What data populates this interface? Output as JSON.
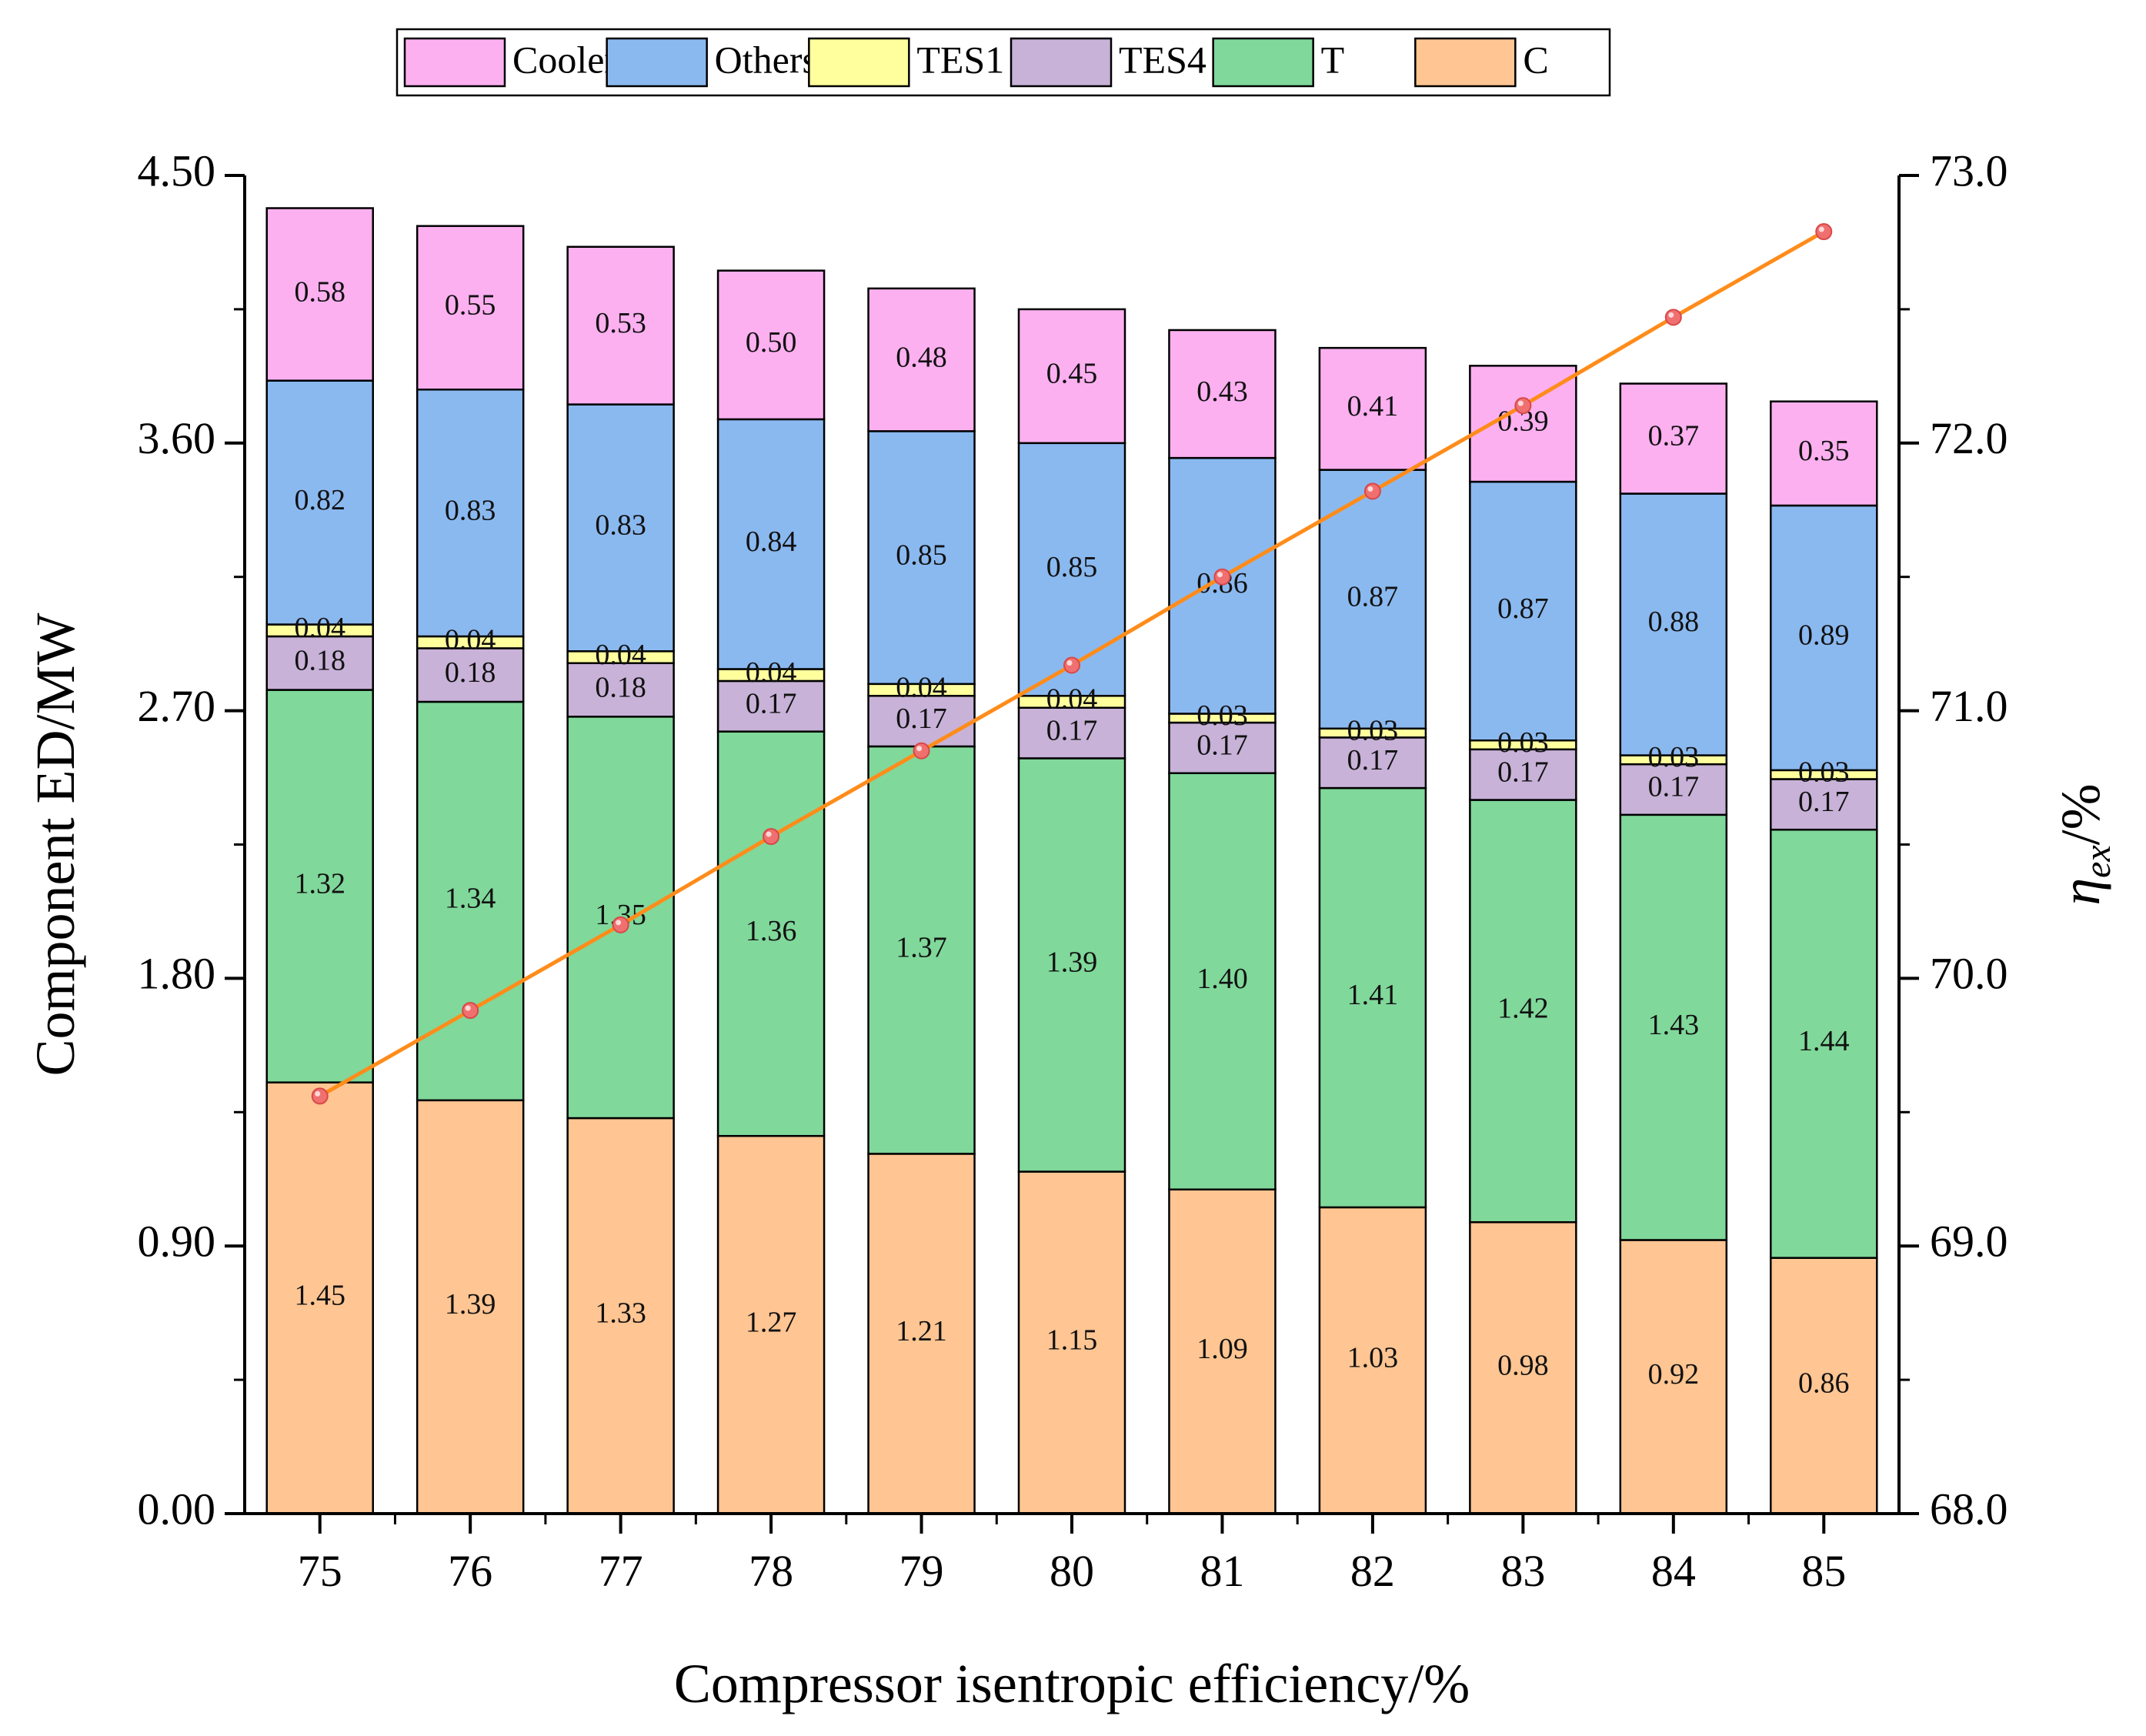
{
  "chart_data": {
    "type": "bar",
    "stacked": true,
    "xlabel": "Compressor isentropic efficiency/%",
    "ylabel": "Component ED/MW",
    "y2label": {
      "main": "η",
      "subscript": "ex",
      "suffix": "/%"
    },
    "categories": [
      "75",
      "76",
      "77",
      "78",
      "79",
      "80",
      "81",
      "82",
      "83",
      "84",
      "85"
    ],
    "ylim": [
      0,
      4.5
    ],
    "yticks": [
      "0.00",
      "0.90",
      "1.80",
      "2.70",
      "3.60",
      "4.50"
    ],
    "y2lim": [
      68.0,
      73.0
    ],
    "y2ticks": [
      "68.0",
      "69.0",
      "70.0",
      "71.0",
      "72.0",
      "73.0"
    ],
    "legend_position": "top-center",
    "series": [
      {
        "name": "C",
        "legend_label": "C",
        "color": "#FFC592",
        "values": [
          1.45,
          1.39,
          1.33,
          1.27,
          1.21,
          1.15,
          1.09,
          1.03,
          0.98,
          0.92,
          0.86
        ],
        "labels": [
          "1.45",
          "1.39",
          "1.33",
          "1.27",
          "1.21",
          "1.15",
          "1.09",
          "1.03",
          "0.98",
          "0.92",
          "0.86"
        ]
      },
      {
        "name": "T",
        "legend_label": "T",
        "color": "#80D89A",
        "values": [
          1.32,
          1.34,
          1.35,
          1.36,
          1.37,
          1.39,
          1.4,
          1.41,
          1.42,
          1.43,
          1.44
        ],
        "labels": [
          "1.32",
          "1.34",
          "1.35",
          "1.36",
          "1.37",
          "1.39",
          "1.40",
          "1.41",
          "1.42",
          "1.43",
          "1.44"
        ]
      },
      {
        "name": "TES4",
        "legend_label": "TES4",
        "color": "#C8B2D8",
        "values": [
          0.18,
          0.18,
          0.18,
          0.17,
          0.17,
          0.17,
          0.17,
          0.17,
          0.17,
          0.17,
          0.17
        ],
        "labels": [
          "0.18",
          "0.18",
          "0.18",
          "0.17",
          "0.17",
          "0.17",
          "0.17",
          "0.17",
          "0.17",
          "0.17",
          "0.17"
        ]
      },
      {
        "name": "TES1",
        "legend_label": "TES1",
        "color": "#FFFF9E",
        "values": [
          0.04,
          0.04,
          0.04,
          0.04,
          0.04,
          0.04,
          0.03,
          0.03,
          0.03,
          0.03,
          0.03
        ],
        "labels": [
          "0.04",
          "0.04",
          "0.04",
          "0.04",
          "0.04",
          "0.04",
          "0.03",
          "0.03",
          "0.03",
          "0.03",
          "0.03"
        ]
      },
      {
        "name": "Others",
        "legend_label": "Others",
        "color": "#8AB9F0",
        "values": [
          0.82,
          0.83,
          0.83,
          0.84,
          0.85,
          0.85,
          0.86,
          0.87,
          0.87,
          0.88,
          0.89
        ],
        "labels": [
          "0.82",
          "0.83",
          "0.83",
          "0.84",
          "0.85",
          "0.85",
          "0.86",
          "0.87",
          "0.87",
          "0.88",
          "0.89"
        ]
      },
      {
        "name": "Cooler",
        "legend_label": "Cooler",
        "color": "#FCB0F0",
        "values": [
          0.58,
          0.55,
          0.53,
          0.5,
          0.48,
          0.45,
          0.43,
          0.41,
          0.39,
          0.37,
          0.35
        ],
        "labels": [
          "0.58",
          "0.55",
          "0.53",
          "0.50",
          "0.48",
          "0.45",
          "0.43",
          "0.41",
          "0.39",
          "0.37",
          "0.35"
        ]
      }
    ],
    "legend_order": [
      "Cooler",
      "Others",
      "TES1",
      "TES4",
      "T",
      "C"
    ],
    "line_series": {
      "name": "η_ex",
      "axis": "right",
      "line_color": "#FF8C1A",
      "marker_color": "#F07070",
      "values": [
        69.56,
        69.88,
        70.2,
        70.53,
        70.85,
        71.17,
        71.5,
        71.82,
        72.14,
        72.47,
        72.79
      ]
    }
  }
}
